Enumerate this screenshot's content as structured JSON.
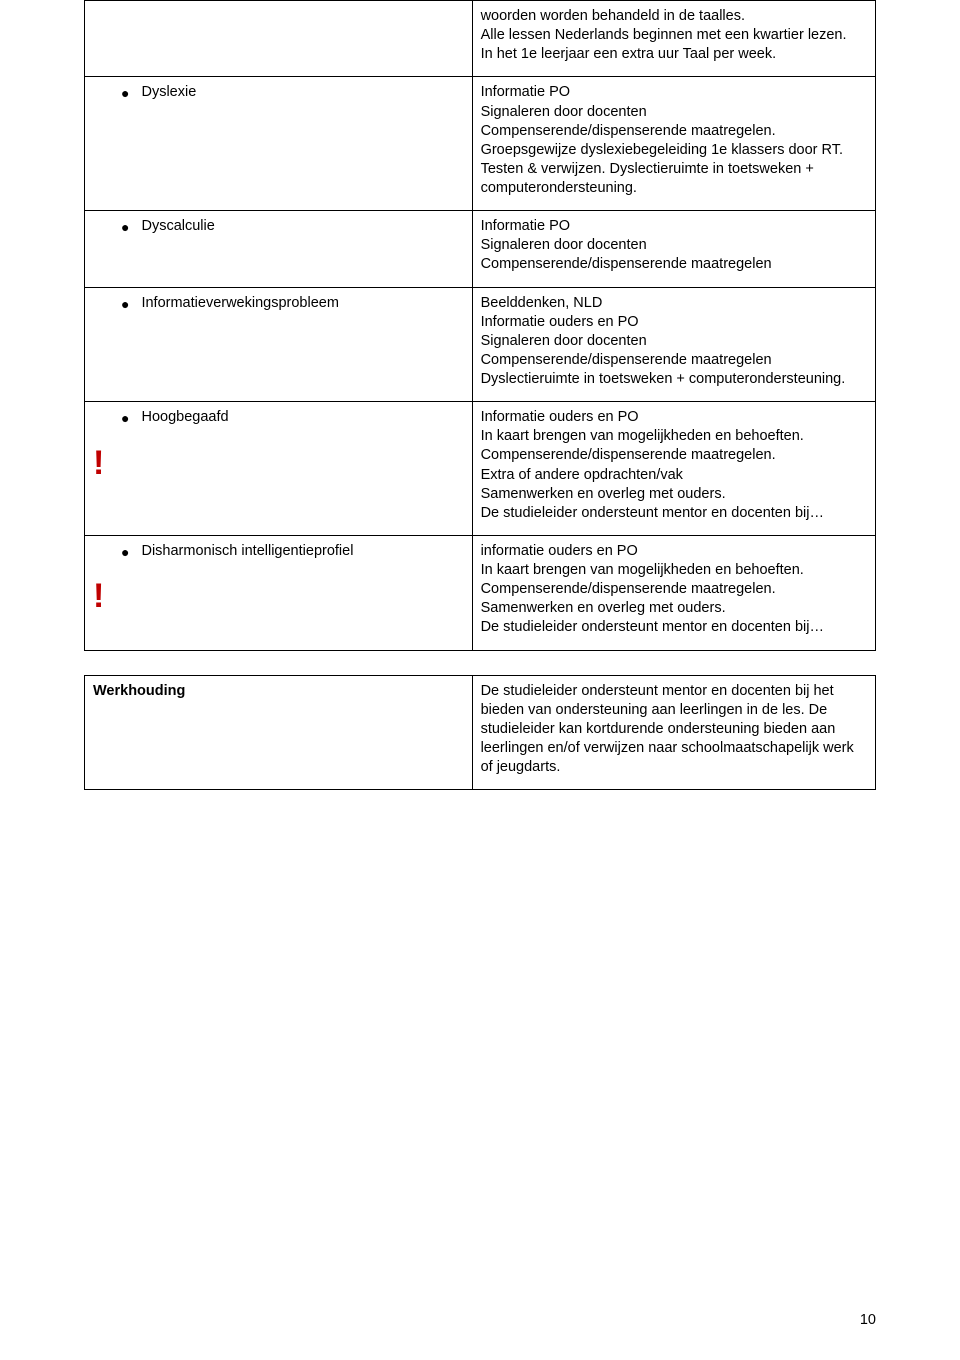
{
  "rows": [
    {
      "label": "",
      "bullet": false,
      "exclamation": false,
      "right": [
        "woorden worden behandeld in de taalles.",
        "Alle lessen Nederlands beginnen met een kwartier lezen.",
        "In het 1e leerjaar een extra uur Taal per week."
      ]
    },
    {
      "label": "Dyslexie",
      "bullet": true,
      "exclamation": false,
      "right": [
        "Informatie PO",
        "Signaleren door docenten",
        "Compenserende/dispenserende maatregelen.",
        "Groepsgewijze dyslexiebegeleiding 1e klassers door RT.",
        "Testen & verwijzen. Dyslectieruimte in toetsweken + computerondersteuning."
      ]
    },
    {
      "label": "Dyscalculie",
      "bullet": true,
      "exclamation": false,
      "right": [
        "Informatie PO",
        "Signaleren door docenten",
        "Compenserende/dispenserende maatregelen"
      ]
    },
    {
      "label": "Informatieverwekingsprobleem",
      "bullet": true,
      "exclamation": false,
      "right": [
        "Beelddenken, NLD",
        "Informatie ouders en PO",
        "Signaleren door docenten",
        "Compenserende/dispenserende maatregelen",
        "Dyslectieruimte in toetsweken + computerondersteuning."
      ]
    },
    {
      "label": "Hoogbegaafd",
      "bullet": true,
      "exclamation": true,
      "right": [
        "Informatie ouders en PO",
        "In kaart brengen van mogelijkheden en behoeften.",
        "Compenserende/dispenserende maatregelen.",
        "Extra of andere opdrachten/vak",
        "Samenwerken en overleg met ouders.",
        "De studieleider ondersteunt mentor en docenten bij…"
      ]
    },
    {
      "label": "Disharmonisch intelligentieprofiel",
      "bullet": true,
      "exclamation": true,
      "right": [
        "informatie ouders en PO",
        "In kaart brengen van mogelijkheden en behoeften.",
        "Compenserende/dispenserende maatregelen.",
        "Samenwerken en overleg met ouders.",
        "De studieleider ondersteunt mentor en docenten bij…"
      ]
    }
  ],
  "bottom": {
    "label": "Werkhouding",
    "right": "De studieleider ondersteunt mentor en docenten bij het bieden van ondersteuning aan leerlingen in de les. De studieleider kan kortdurende ondersteuning bieden aan leerlingen en/of verwijzen naar schoolmaatschapelijk werk of jeugdarts."
  },
  "page_number": "10",
  "colors": {
    "text": "#000000",
    "excl": "#c00000",
    "border": "#000000",
    "background": "#ffffff"
  }
}
